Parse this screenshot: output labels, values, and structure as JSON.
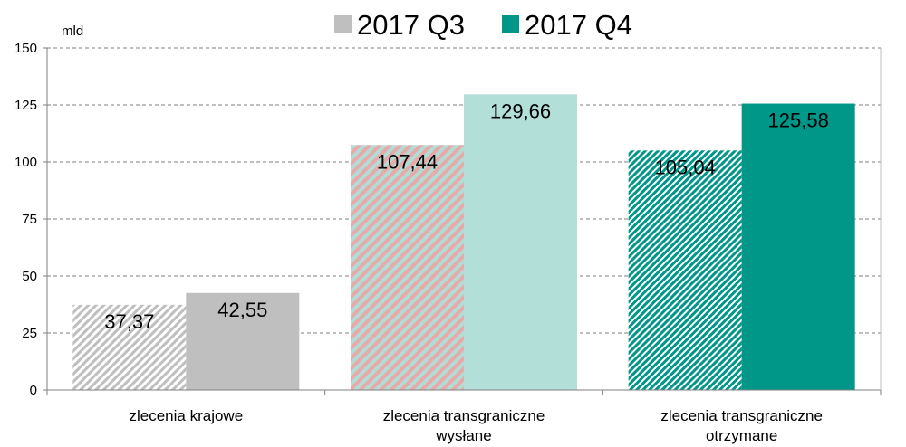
{
  "chart_data": {
    "type": "bar",
    "unit_label": "mld",
    "categories": [
      [
        "zlecenia krajowe"
      ],
      [
        "zlecenia transgraniczne",
        "wysłane"
      ],
      [
        "zlecenia transgraniczne",
        "otrzymane"
      ]
    ],
    "series": [
      {
        "name": "2017 Q3",
        "values": [
          37.37,
          107.44,
          105.04
        ],
        "labels": [
          "37,37",
          "107,44",
          "105,04"
        ]
      },
      {
        "name": "2017 Q4",
        "values": [
          42.55,
          129.66,
          125.58
        ],
        "labels": [
          "42,55",
          "129,66",
          "125,58"
        ]
      }
    ],
    "ylim": [
      0,
      150
    ],
    "yticks": [
      0,
      25,
      50,
      75,
      100,
      125,
      150
    ],
    "grid": true,
    "legend_position": "top",
    "colors": {
      "legend_q3": "#BFBFBF",
      "legend_q4": "#009688",
      "cat1_q3_hatch": "#BFBFBF",
      "cat1_q4": "#BFBFBF",
      "cat2_q3_hatch": "#E8A9A9",
      "cat2_q3_hatch_alt": "#B2DDD6",
      "cat2_q4": "#B2DFD8",
      "cat3_q3_hatch": "#009688",
      "cat3_q4": "#009688"
    }
  }
}
